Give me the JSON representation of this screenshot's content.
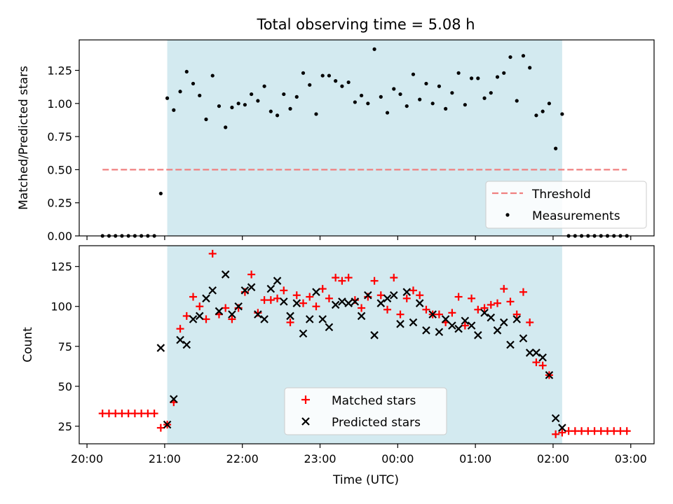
{
  "title": "Total observing time = 5.08 h",
  "chart_data": [
    {
      "type": "scatter",
      "ylabel": "Matched/Predicted stars",
      "ylim": [
        0,
        1.48
      ],
      "yticks": [
        "0.00",
        "0.25",
        "0.50",
        "0.75",
        "1.00",
        "1.25"
      ],
      "threshold": 0.5,
      "legend_placement": "lower-right",
      "legend": {
        "threshold": "Threshold",
        "measurements": "Measurements"
      },
      "colors": {
        "threshold": "#f08080",
        "measurements": "#000000",
        "shade": "#d3eaf0"
      },
      "ratio_points": [
        [
          "20:12",
          0
        ],
        [
          "20:17",
          0
        ],
        [
          "20:22",
          0
        ],
        [
          "20:27",
          0
        ],
        [
          "20:32",
          0
        ],
        [
          "20:37",
          0
        ],
        [
          "20:42",
          0
        ],
        [
          "20:47",
          0
        ],
        [
          "20:52",
          0
        ],
        [
          "20:57",
          0.32
        ],
        [
          "21:02",
          1.04
        ],
        [
          "21:07",
          0.95
        ],
        [
          "21:12",
          1.09
        ],
        [
          "21:17",
          1.24
        ],
        [
          "21:22",
          1.15
        ],
        [
          "21:27",
          1.06
        ],
        [
          "21:32",
          0.88
        ],
        [
          "21:37",
          1.21
        ],
        [
          "21:42",
          0.98
        ],
        [
          "21:47",
          0.82
        ],
        [
          "21:52",
          0.97
        ],
        [
          "21:57",
          1.0
        ],
        [
          "22:02",
          0.99
        ],
        [
          "22:07",
          1.07
        ],
        [
          "22:12",
          1.02
        ],
        [
          "22:17",
          1.13
        ],
        [
          "22:22",
          0.94
        ],
        [
          "22:27",
          0.91
        ],
        [
          "22:32",
          1.07
        ],
        [
          "22:37",
          0.96
        ],
        [
          "22:42",
          1.05
        ],
        [
          "22:47",
          1.23
        ],
        [
          "22:52",
          1.14
        ],
        [
          "22:57",
          0.92
        ],
        [
          "23:02",
          1.21
        ],
        [
          "23:07",
          1.21
        ],
        [
          "23:12",
          1.17
        ],
        [
          "23:17",
          1.13
        ],
        [
          "23:22",
          1.16
        ],
        [
          "23:27",
          1.01
        ],
        [
          "23:32",
          1.06
        ],
        [
          "23:37",
          1.0
        ],
        [
          "23:42",
          1.41
        ],
        [
          "23:47",
          1.05
        ],
        [
          "23:52",
          0.93
        ],
        [
          "23:57",
          1.11
        ],
        [
          "00:02",
          1.07
        ],
        [
          "00:07",
          0.98
        ],
        [
          "00:12",
          1.22
        ],
        [
          "00:17",
          1.03
        ],
        [
          "00:22",
          1.15
        ],
        [
          "00:27",
          1.0
        ],
        [
          "00:32",
          1.13
        ],
        [
          "00:37",
          0.96
        ],
        [
          "00:42",
          1.08
        ],
        [
          "00:47",
          1.23
        ],
        [
          "00:52",
          0.99
        ],
        [
          "00:57",
          1.19
        ],
        [
          "01:02",
          1.19
        ],
        [
          "01:07",
          1.04
        ],
        [
          "01:12",
          1.08
        ],
        [
          "01:17",
          1.2
        ],
        [
          "01:22",
          1.23
        ],
        [
          "01:27",
          1.35
        ],
        [
          "01:32",
          1.02
        ],
        [
          "01:37",
          1.36
        ],
        [
          "01:42",
          1.27
        ],
        [
          "01:47",
          0.91
        ],
        [
          "01:52",
          0.94
        ],
        [
          "01:57",
          1.0
        ],
        [
          "02:02",
          0.66
        ],
        [
          "02:07",
          0.92
        ],
        [
          "02:12",
          0
        ],
        [
          "02:17",
          0
        ],
        [
          "02:22",
          0
        ],
        [
          "02:27",
          0
        ],
        [
          "02:32",
          0
        ],
        [
          "02:37",
          0
        ],
        [
          "02:42",
          0
        ],
        [
          "02:47",
          0
        ],
        [
          "02:52",
          0
        ],
        [
          "02:57",
          0
        ]
      ]
    },
    {
      "type": "scatter",
      "ylabel": "Count",
      "xlabel": "Time (UTC)",
      "ylim": [
        14,
        138
      ],
      "yticks": [
        "25",
        "50",
        "75",
        "100",
        "125"
      ],
      "xticks": [
        "20:00",
        "21:00",
        "22:00",
        "23:00",
        "00:00",
        "01:00",
        "02:00",
        "03:00"
      ],
      "legend_placement": "lower-center",
      "legend": {
        "matched": "Matched stars",
        "predicted": "Predicted stars"
      },
      "colors": {
        "matched": "#ff0000",
        "predicted": "#000000",
        "shade": "#d3eaf0"
      },
      "matched": [
        [
          "20:12",
          33
        ],
        [
          "20:17",
          33
        ],
        [
          "20:22",
          33
        ],
        [
          "20:27",
          33
        ],
        [
          "20:32",
          33
        ],
        [
          "20:37",
          33
        ],
        [
          "20:42",
          33
        ],
        [
          "20:47",
          33
        ],
        [
          "20:52",
          33
        ],
        [
          "20:57",
          24
        ],
        [
          "21:02",
          26
        ],
        [
          "21:07",
          40
        ],
        [
          "21:12",
          86
        ],
        [
          "21:17",
          94
        ],
        [
          "21:22",
          106
        ],
        [
          "21:27",
          100
        ],
        [
          "21:32",
          92
        ],
        [
          "21:37",
          133
        ],
        [
          "21:42",
          95
        ],
        [
          "21:47",
          99
        ],
        [
          "21:52",
          92
        ],
        [
          "21:57",
          99
        ],
        [
          "22:02",
          109
        ],
        [
          "22:07",
          120
        ],
        [
          "22:12",
          96
        ],
        [
          "22:17",
          104
        ],
        [
          "22:22",
          104
        ],
        [
          "22:27",
          105
        ],
        [
          "22:32",
          110
        ],
        [
          "22:37",
          90
        ],
        [
          "22:42",
          107
        ],
        [
          "22:47",
          102
        ],
        [
          "22:52",
          106
        ],
        [
          "22:57",
          100
        ],
        [
          "23:02",
          111
        ],
        [
          "23:07",
          105
        ],
        [
          "23:12",
          118
        ],
        [
          "23:17",
          116
        ],
        [
          "23:22",
          118
        ],
        [
          "23:27",
          104
        ],
        [
          "23:32",
          99
        ],
        [
          "23:37",
          106
        ],
        [
          "23:42",
          116
        ],
        [
          "23:47",
          107
        ],
        [
          "23:52",
          98
        ],
        [
          "23:57",
          118
        ],
        [
          "00:02",
          95
        ],
        [
          "00:07",
          105
        ],
        [
          "00:12",
          110
        ],
        [
          "00:17",
          107
        ],
        [
          "00:22",
          98
        ],
        [
          "00:27",
          95
        ],
        [
          "00:32",
          95
        ],
        [
          "00:37",
          90
        ],
        [
          "00:42",
          96
        ],
        [
          "00:47",
          106
        ],
        [
          "00:52",
          88
        ],
        [
          "00:57",
          105
        ],
        [
          "01:02",
          98
        ],
        [
          "01:07",
          99
        ],
        [
          "01:12",
          101
        ],
        [
          "01:17",
          102
        ],
        [
          "01:22",
          111
        ],
        [
          "01:27",
          103
        ],
        [
          "01:32",
          95
        ],
        [
          "01:37",
          109
        ],
        [
          "01:42",
          90
        ],
        [
          "01:47",
          65
        ],
        [
          "01:52",
          63
        ],
        [
          "01:57",
          57
        ],
        [
          "02:02",
          20
        ],
        [
          "02:07",
          21
        ],
        [
          "02:12",
          22
        ],
        [
          "02:17",
          22
        ],
        [
          "02:22",
          22
        ],
        [
          "02:27",
          22
        ],
        [
          "02:32",
          22
        ],
        [
          "02:37",
          22
        ],
        [
          "02:42",
          22
        ],
        [
          "02:47",
          22
        ],
        [
          "02:52",
          22
        ],
        [
          "02:57",
          22
        ]
      ],
      "predicted": [
        [
          "20:57",
          74
        ],
        [
          "21:02",
          26
        ],
        [
          "21:07",
          42
        ],
        [
          "21:12",
          79
        ],
        [
          "21:17",
          76
        ],
        [
          "21:22",
          92
        ],
        [
          "21:27",
          94
        ],
        [
          "21:32",
          105
        ],
        [
          "21:37",
          110
        ],
        [
          "21:42",
          97
        ],
        [
          "21:47",
          120
        ],
        [
          "21:52",
          95
        ],
        [
          "21:57",
          100
        ],
        [
          "22:02",
          110
        ],
        [
          "22:07",
          112
        ],
        [
          "22:12",
          95
        ],
        [
          "22:17",
          92
        ],
        [
          "22:22",
          111
        ],
        [
          "22:27",
          116
        ],
        [
          "22:32",
          103
        ],
        [
          "22:37",
          94
        ],
        [
          "22:42",
          102
        ],
        [
          "22:47",
          83
        ],
        [
          "22:52",
          92
        ],
        [
          "22:57",
          109
        ],
        [
          "23:02",
          92
        ],
        [
          "23:07",
          87
        ],
        [
          "23:12",
          101
        ],
        [
          "23:17",
          103
        ],
        [
          "23:22",
          102
        ],
        [
          "23:27",
          103
        ],
        [
          "23:32",
          94
        ],
        [
          "23:37",
          107
        ],
        [
          "23:42",
          82
        ],
        [
          "23:47",
          102
        ],
        [
          "23:52",
          105
        ],
        [
          "23:57",
          107
        ],
        [
          "00:02",
          89
        ],
        [
          "00:07",
          109
        ],
        [
          "00:12",
          90
        ],
        [
          "00:17",
          102
        ],
        [
          "00:22",
          85
        ],
        [
          "00:27",
          95
        ],
        [
          "00:32",
          84
        ],
        [
          "00:37",
          92
        ],
        [
          "00:42",
          88
        ],
        [
          "00:47",
          86
        ],
        [
          "00:52",
          91
        ],
        [
          "00:57",
          88
        ],
        [
          "01:02",
          82
        ],
        [
          "01:07",
          96
        ],
        [
          "01:12",
          93
        ],
        [
          "01:17",
          85
        ],
        [
          "01:22",
          90
        ],
        [
          "01:27",
          76
        ],
        [
          "01:32",
          92
        ],
        [
          "01:37",
          80
        ],
        [
          "01:42",
          71
        ],
        [
          "01:47",
          71
        ],
        [
          "01:52",
          68
        ],
        [
          "01:57",
          57
        ],
        [
          "02:02",
          30
        ],
        [
          "02:07",
          24
        ]
      ]
    }
  ],
  "observing_window": [
    "21:02",
    "02:07"
  ]
}
